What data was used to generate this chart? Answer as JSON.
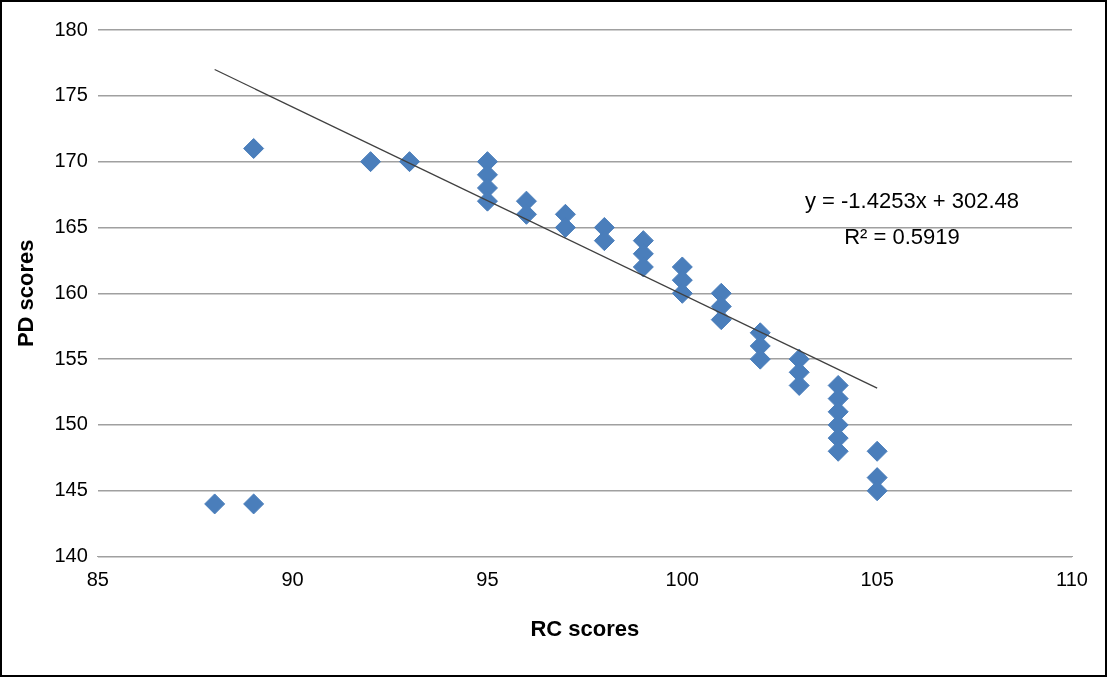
{
  "chart_data": {
    "type": "scatter",
    "xlabel": "RC scores",
    "ylabel": "PD scores",
    "series": [
      {
        "color": "#4a7ebb",
        "marker": "diamond",
        "x": [
          88,
          89,
          89,
          92,
          93,
          95,
          95,
          95,
          95,
          96,
          96,
          97,
          97,
          98,
          98,
          99,
          99,
          99,
          100,
          100,
          100,
          101,
          101,
          101,
          102,
          102,
          102,
          103,
          103,
          103,
          104,
          104,
          104,
          104,
          104,
          104,
          105,
          105,
          105
        ],
        "values": [
          144,
          171,
          144,
          170,
          170,
          170,
          169,
          168,
          167,
          167,
          166,
          166,
          165,
          165,
          164,
          164,
          163,
          162,
          162,
          161,
          160,
          160,
          159,
          158,
          157,
          156,
          155,
          155,
          154,
          153,
          153,
          152,
          151,
          150,
          149,
          148,
          148,
          146,
          145
        ]
      },
      {
        "type": "line",
        "color": "#404040",
        "marker": "none",
        "x": [
          88,
          105
        ],
        "values": [
          177,
          152.8
        ]
      }
    ],
    "xlim": [
      85,
      110
    ],
    "xticks": [
      85,
      90,
      95,
      100,
      105,
      110
    ],
    "ylim": [
      140,
      180
    ],
    "yticks": [
      140,
      145,
      150,
      155,
      160,
      165,
      170,
      175,
      180
    ],
    "grid": "y",
    "legend": false,
    "annotations": [
      "y = -1.4253x + 302.48",
      "R² = 0.5919"
    ]
  }
}
